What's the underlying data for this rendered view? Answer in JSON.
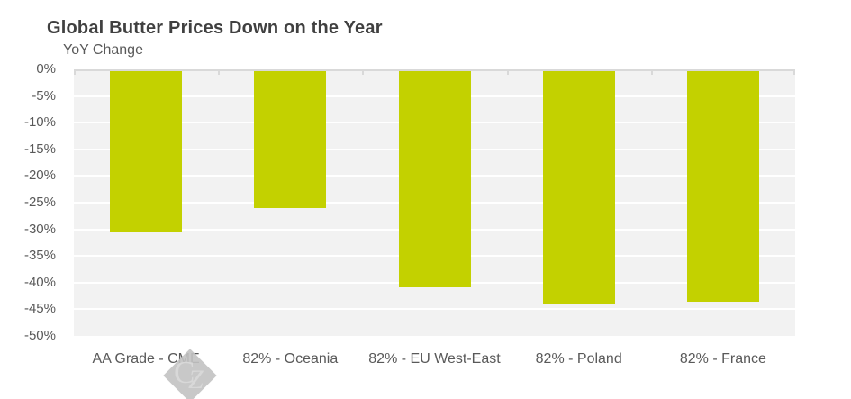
{
  "chart_data": {
    "type": "bar",
    "title": "Global Butter Prices Down on the Year",
    "subtitle": "YoY Change",
    "categories": [
      "AA Grade - CME",
      "82% - Oceania",
      "82% - EU West-East",
      "82% - Poland",
      "82% - France"
    ],
    "values": [
      -30.5,
      -26,
      -40.8,
      -44,
      -43.5
    ],
    "unit": "%",
    "ylim": [
      -50,
      0
    ],
    "ytick_step": 5,
    "ytick_labels": [
      "0%",
      "-5%",
      "-10%",
      "-15%",
      "-20%",
      "-25%",
      "-30%",
      "-35%",
      "-40%",
      "-45%",
      "-50%"
    ],
    "grid": true,
    "legend": "none",
    "colors": {
      "bar": "#c3d100",
      "plot_bg": "#f2f2f2",
      "gridline": "#ffffff",
      "axis_line": "#d9d9d9",
      "title_text": "#404040",
      "label_text": "#595959"
    }
  },
  "watermark": {
    "letter_c": "C",
    "letter_z": "Z"
  }
}
